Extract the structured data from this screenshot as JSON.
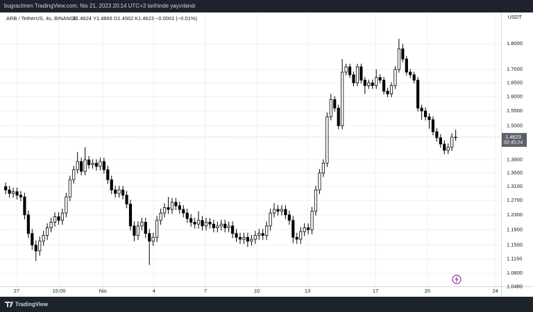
{
  "header": "bugraclmen TradingView.com, Nis 21, 2023 20:14 UTC+3 tarihinde yayınlandı",
  "footer": "TradingView",
  "chart_data": {
    "type": "candlestick",
    "legend": {
      "symbol": "ARB / TetherUS, 4s, BINANCE",
      "ohlc": [
        "A1.4624",
        "Y1.4866",
        "D1.4502",
        "K1.4623"
      ],
      "change": "−0.0001 (−0.01%)"
    },
    "currency": "USDT",
    "last_price": 1.4623,
    "countdown": "02:45:24",
    "log_scale": true,
    "grid": true,
    "up_color": "#ffffff",
    "down_color": "#000000",
    "ylim": [
      1.049,
      1.93
    ],
    "yticks": [
      {
        "value": 1.8,
        "label": "1.8000"
      },
      {
        "value": 1.7,
        "label": "1.7000"
      },
      {
        "value": 1.65,
        "label": "1.6500"
      },
      {
        "value": 1.6,
        "label": "1.6000"
      },
      {
        "value": 1.55,
        "label": "1.5500"
      },
      {
        "value": 1.5,
        "label": "1.5000"
      },
      {
        "value": 1.39,
        "label": "1.3900"
      },
      {
        "value": 1.35,
        "label": "1.3500"
      },
      {
        "value": 1.31,
        "label": "1.3100"
      },
      {
        "value": 1.27,
        "label": "1.2700"
      },
      {
        "value": 1.23,
        "label": "1.2300"
      },
      {
        "value": 1.19,
        "label": "1.1900"
      },
      {
        "value": 1.15,
        "label": "1.1500"
      },
      {
        "value": 1.115,
        "label": "1.1150"
      },
      {
        "value": 1.08,
        "label": "1.0800"
      },
      {
        "value": 1.048,
        "label": "1.0480"
      }
    ],
    "xlim": [
      -1.5,
      131
    ],
    "xticks": [
      {
        "value": 2.9,
        "label": "27"
      },
      {
        "value": 14.1,
        "label": "15:00"
      },
      {
        "value": 25.7,
        "label": "Nis"
      },
      {
        "value": 39.2,
        "label": "4"
      },
      {
        "value": 52.8,
        "label": "7"
      },
      {
        "value": 66.4,
        "label": "10"
      },
      {
        "value": 79.8,
        "label": "13"
      },
      {
        "value": 97.8,
        "label": "17"
      },
      {
        "value": 111.5,
        "label": "20"
      },
      {
        "value": 129.5,
        "label": "24"
      }
    ],
    "open": [
      1.31,
      1.3,
      1.29,
      1.295,
      1.285,
      1.28,
      1.23,
      1.18,
      1.15,
      1.135,
      1.16,
      1.175,
      1.195,
      1.21,
      1.225,
      1.215,
      1.235,
      1.28,
      1.33,
      1.36,
      1.385,
      1.355,
      1.39,
      1.375,
      1.38,
      1.37,
      1.385,
      1.36,
      1.33,
      1.3,
      1.29,
      1.3,
      1.285,
      1.26,
      1.2,
      1.175,
      1.2,
      1.21,
      1.18,
      1.16,
      1.17,
      1.215,
      1.235,
      1.25,
      1.245,
      1.265,
      1.255,
      1.245,
      1.235,
      1.22,
      1.21,
      1.205,
      1.215,
      1.2,
      1.21,
      1.205,
      1.195,
      1.2,
      1.205,
      1.195,
      1.2,
      1.18,
      1.17,
      1.165,
      1.17,
      1.16,
      1.165,
      1.175,
      1.18,
      1.175,
      1.2,
      1.235,
      1.245,
      1.24,
      1.245,
      1.23,
      1.215,
      1.17,
      1.165,
      1.185,
      1.195,
      1.19,
      1.24,
      1.3,
      1.35,
      1.38,
      1.53,
      1.59,
      1.56,
      1.5,
      1.69,
      1.71,
      1.68,
      1.65,
      1.71,
      1.66,
      1.64,
      1.65,
      1.64,
      1.67,
      1.66,
      1.62,
      1.61,
      1.64,
      1.7,
      1.78,
      1.74,
      1.69,
      1.68,
      1.66,
      1.56,
      1.55,
      1.53,
      1.52,
      1.48,
      1.46,
      1.44,
      1.42,
      1.43,
      1.4624
    ],
    "high": [
      1.322,
      1.312,
      1.307,
      1.307,
      1.297,
      1.292,
      1.242,
      1.192,
      1.162,
      1.172,
      1.187,
      1.207,
      1.222,
      1.237,
      1.237,
      1.247,
      1.292,
      1.342,
      1.372,
      1.415,
      1.397,
      1.43,
      1.402,
      1.392,
      1.392,
      1.397,
      1.397,
      1.372,
      1.342,
      1.312,
      1.312,
      1.312,
      1.297,
      1.272,
      1.212,
      1.212,
      1.222,
      1.222,
      1.192,
      1.182,
      1.227,
      1.247,
      1.262,
      1.28,
      1.277,
      1.277,
      1.267,
      1.257,
      1.247,
      1.232,
      1.222,
      1.24,
      1.227,
      1.222,
      1.222,
      1.217,
      1.212,
      1.217,
      1.217,
      1.212,
      1.212,
      1.192,
      1.182,
      1.182,
      1.182,
      1.177,
      1.187,
      1.192,
      1.192,
      1.212,
      1.247,
      1.262,
      1.257,
      1.257,
      1.257,
      1.242,
      1.227,
      1.182,
      1.197,
      1.207,
      1.207,
      1.252,
      1.312,
      1.362,
      1.392,
      1.545,
      1.61,
      1.602,
      1.572,
      1.74,
      1.722,
      1.722,
      1.692,
      1.722,
      1.722,
      1.672,
      1.662,
      1.662,
      1.7,
      1.682,
      1.672,
      1.632,
      1.652,
      1.712,
      1.82,
      1.8,
      1.752,
      1.702,
      1.692,
      1.672,
      1.572,
      1.562,
      1.542,
      1.532,
      1.492,
      1.472,
      1.452,
      1.442,
      1.475,
      1.4866
    ],
    "low": [
      1.288,
      1.278,
      1.278,
      1.273,
      1.268,
      1.218,
      1.168,
      1.138,
      1.11,
      1.123,
      1.148,
      1.163,
      1.183,
      1.198,
      1.203,
      1.203,
      1.223,
      1.268,
      1.318,
      1.348,
      1.343,
      1.343,
      1.363,
      1.363,
      1.358,
      1.358,
      1.348,
      1.318,
      1.288,
      1.278,
      1.278,
      1.273,
      1.248,
      1.188,
      1.16,
      1.163,
      1.188,
      1.168,
      1.1,
      1.148,
      1.158,
      1.203,
      1.223,
      1.233,
      1.233,
      1.243,
      1.233,
      1.223,
      1.208,
      1.198,
      1.193,
      1.193,
      1.188,
      1.188,
      1.193,
      1.183,
      1.183,
      1.188,
      1.183,
      1.183,
      1.168,
      1.158,
      1.153,
      1.153,
      1.145,
      1.148,
      1.153,
      1.163,
      1.163,
      1.163,
      1.188,
      1.223,
      1.228,
      1.228,
      1.218,
      1.203,
      1.155,
      1.153,
      1.153,
      1.173,
      1.178,
      1.178,
      1.228,
      1.288,
      1.338,
      1.368,
      1.518,
      1.548,
      1.488,
      1.488,
      1.678,
      1.668,
      1.638,
      1.638,
      1.648,
      1.61,
      1.628,
      1.628,
      1.628,
      1.648,
      1.608,
      1.598,
      1.598,
      1.628,
      1.688,
      1.728,
      1.678,
      1.668,
      1.648,
      1.548,
      1.52,
      1.518,
      1.49,
      1.468,
      1.448,
      1.428,
      1.408,
      1.408,
      1.418,
      1.4502
    ],
    "close": [
      1.3,
      1.29,
      1.295,
      1.285,
      1.28,
      1.23,
      1.18,
      1.15,
      1.135,
      1.16,
      1.175,
      1.195,
      1.21,
      1.225,
      1.215,
      1.235,
      1.28,
      1.33,
      1.36,
      1.385,
      1.355,
      1.39,
      1.375,
      1.38,
      1.37,
      1.385,
      1.36,
      1.33,
      1.3,
      1.29,
      1.3,
      1.285,
      1.26,
      1.2,
      1.175,
      1.2,
      1.21,
      1.18,
      1.16,
      1.17,
      1.215,
      1.235,
      1.25,
      1.245,
      1.265,
      1.255,
      1.245,
      1.235,
      1.22,
      1.21,
      1.205,
      1.215,
      1.2,
      1.21,
      1.205,
      1.195,
      1.2,
      1.205,
      1.195,
      1.2,
      1.18,
      1.17,
      1.165,
      1.17,
      1.16,
      1.165,
      1.175,
      1.18,
      1.175,
      1.2,
      1.235,
      1.245,
      1.24,
      1.245,
      1.23,
      1.215,
      1.17,
      1.165,
      1.185,
      1.195,
      1.19,
      1.24,
      1.3,
      1.35,
      1.38,
      1.53,
      1.59,
      1.56,
      1.5,
      1.69,
      1.71,
      1.68,
      1.65,
      1.71,
      1.66,
      1.64,
      1.65,
      1.64,
      1.67,
      1.66,
      1.62,
      1.61,
      1.64,
      1.7,
      1.78,
      1.74,
      1.69,
      1.68,
      1.66,
      1.56,
      1.55,
      1.53,
      1.52,
      1.48,
      1.46,
      1.44,
      1.42,
      1.43,
      1.4624,
      1.4623
    ]
  }
}
